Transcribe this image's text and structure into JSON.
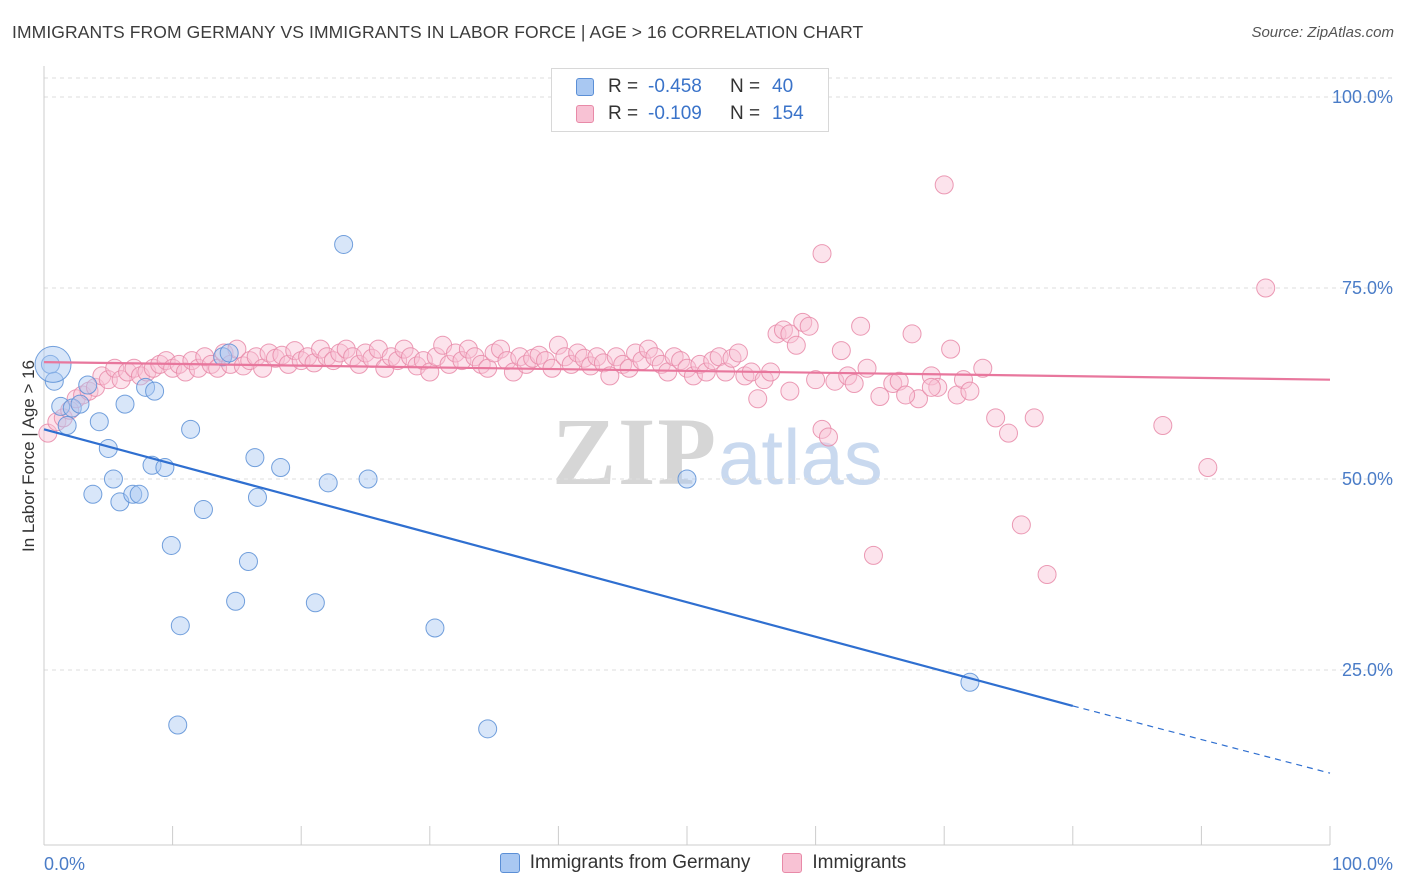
{
  "header": {
    "title": "IMMIGRANTS FROM GERMANY VS IMMIGRANTS IN LABOR FORCE | AGE > 16 CORRELATION CHART",
    "source": "Source: ZipAtlas.com"
  },
  "watermark": {
    "zip": "ZIP",
    "atlas": "atlas"
  },
  "legend": {
    "rows": [
      {
        "r_label": "R =",
        "r_value": "-0.458",
        "n_label": "N =",
        "n_value": "40",
        "color": "#a9c8f2",
        "border": "#5b8fd6"
      },
      {
        "r_label": "R =",
        "r_value": "-0.109",
        "n_label": "N =",
        "n_value": "154",
        "color": "#f8c2d4",
        "border": "#e88aa8"
      }
    ]
  },
  "bottom_legend": {
    "items": [
      {
        "label": "Immigrants from Germany",
        "color": "#a9c8f2",
        "border": "#5b8fd6"
      },
      {
        "label": "Immigrants",
        "color": "#f8c2d4",
        "border": "#e88aa8"
      }
    ]
  },
  "chart_data": {
    "type": "scatter",
    "title": "IMMIGRANTS FROM GERMANY VS IMMIGRANTS IN LABOR FORCE | AGE > 16 CORRELATION CHART",
    "xlabel": "",
    "ylabel": "In Labor Force | Age > 16",
    "xlim": [
      0,
      100
    ],
    "ylim": [
      0,
      105
    ],
    "x_tick_labels": [
      "0.0%",
      "100.0%"
    ],
    "y_ticks": [
      25,
      50,
      75,
      100
    ],
    "y_tick_labels": [
      "25.0%",
      "50.0%",
      "75.0%",
      "100.0%"
    ],
    "grid": "horizontal dashed",
    "legend_position": "top-center",
    "series": [
      {
        "name": "Immigrants from Germany",
        "color": "#5b8fd6",
        "fill": "#a9c8f2",
        "trend": {
          "x0": 0,
          "y0": 56.5,
          "x1": 80,
          "y1": 20.3,
          "dashed_to_x": 100,
          "dashed_to_y": 11.5,
          "color": "#2f6fd0"
        },
        "points": [
          [
            0.5,
            65.0
          ],
          [
            0.8,
            62.8
          ],
          [
            1.3,
            59.5
          ],
          [
            1.8,
            57.0
          ],
          [
            2.2,
            59.3
          ],
          [
            2.8,
            59.8
          ],
          [
            3.4,
            62.3
          ],
          [
            3.8,
            48.0
          ],
          [
            4.3,
            57.5
          ],
          [
            5.0,
            54.0
          ],
          [
            5.4,
            50.0
          ],
          [
            5.9,
            47.0
          ],
          [
            6.3,
            59.8
          ],
          [
            6.9,
            48.0
          ],
          [
            7.4,
            48.0
          ],
          [
            7.9,
            62.0
          ],
          [
            8.4,
            51.8
          ],
          [
            8.6,
            61.5
          ],
          [
            9.4,
            51.5
          ],
          [
            9.9,
            41.3
          ],
          [
            10.6,
            30.8
          ],
          [
            10.4,
            17.8
          ],
          [
            11.4,
            56.5
          ],
          [
            12.4,
            46.0
          ],
          [
            13.9,
            66.0
          ],
          [
            14.4,
            66.5
          ],
          [
            15.9,
            39.2
          ],
          [
            14.9,
            34.0
          ],
          [
            16.4,
            52.8
          ],
          [
            16.6,
            47.6
          ],
          [
            18.4,
            51.5
          ],
          [
            21.1,
            33.8
          ],
          [
            22.1,
            49.5
          ],
          [
            23.3,
            80.7
          ],
          [
            25.2,
            50.0
          ],
          [
            30.4,
            30.5
          ],
          [
            34.5,
            17.3
          ],
          [
            50.0,
            50.0
          ],
          [
            72.0,
            23.4
          ],
          [
            0.7,
            65.0
          ]
        ]
      },
      {
        "name": "Immigrants",
        "color": "#e88aa8",
        "fill": "#f8c2d4",
        "trend": {
          "x0": 0,
          "y0": 65.3,
          "x1": 100,
          "y1": 63.0,
          "color": "#e8779d"
        },
        "points": [
          [
            0.3,
            56.0
          ],
          [
            1.0,
            57.5
          ],
          [
            1.5,
            58.0
          ],
          [
            2.0,
            59.0
          ],
          [
            2.5,
            60.5
          ],
          [
            3.0,
            61.0
          ],
          [
            3.5,
            61.5
          ],
          [
            4.0,
            62.0
          ],
          [
            4.5,
            63.5
          ],
          [
            5.0,
            63.0
          ],
          [
            5.5,
            64.5
          ],
          [
            6.0,
            63.0
          ],
          [
            6.5,
            64.0
          ],
          [
            7.0,
            64.5
          ],
          [
            7.5,
            63.5
          ],
          [
            8.0,
            64.0
          ],
          [
            8.5,
            64.5
          ],
          [
            9.0,
            65.0
          ],
          [
            9.5,
            65.5
          ],
          [
            10.0,
            64.5
          ],
          [
            10.5,
            65.0
          ],
          [
            11.0,
            64.0
          ],
          [
            11.5,
            65.5
          ],
          [
            12.0,
            64.5
          ],
          [
            12.5,
            66.0
          ],
          [
            13.0,
            65.0
          ],
          [
            13.5,
            64.5
          ],
          [
            14.0,
            66.5
          ],
          [
            14.5,
            65.0
          ],
          [
            15.0,
            67.0
          ],
          [
            15.5,
            64.8
          ],
          [
            16.0,
            65.5
          ],
          [
            16.5,
            66.0
          ],
          [
            17.0,
            64.5
          ],
          [
            17.5,
            66.5
          ],
          [
            18.0,
            65.8
          ],
          [
            18.5,
            66.2
          ],
          [
            19.0,
            65.0
          ],
          [
            19.5,
            66.8
          ],
          [
            20.0,
            65.5
          ],
          [
            20.5,
            66.0
          ],
          [
            21.0,
            65.2
          ],
          [
            21.5,
            67.0
          ],
          [
            22.0,
            66.0
          ],
          [
            22.5,
            65.5
          ],
          [
            23.0,
            66.5
          ],
          [
            23.5,
            67.0
          ],
          [
            24.0,
            66.0
          ],
          [
            24.5,
            65.0
          ],
          [
            25.0,
            66.5
          ],
          [
            25.5,
            65.8
          ],
          [
            26.0,
            67.0
          ],
          [
            26.5,
            64.5
          ],
          [
            27.0,
            66.0
          ],
          [
            27.5,
            65.5
          ],
          [
            28.0,
            67.0
          ],
          [
            28.5,
            66.0
          ],
          [
            29.0,
            64.8
          ],
          [
            29.5,
            65.5
          ],
          [
            30.0,
            64.0
          ],
          [
            30.5,
            66.0
          ],
          [
            31.0,
            67.5
          ],
          [
            31.5,
            65.0
          ],
          [
            32.0,
            66.5
          ],
          [
            32.5,
            65.5
          ],
          [
            33.0,
            67.0
          ],
          [
            33.5,
            66.0
          ],
          [
            34.0,
            65.0
          ],
          [
            34.5,
            64.5
          ],
          [
            35.0,
            66.5
          ],
          [
            35.5,
            67.0
          ],
          [
            36.0,
            65.5
          ],
          [
            36.5,
            64.0
          ],
          [
            37.0,
            66.0
          ],
          [
            37.5,
            65.0
          ],
          [
            38.0,
            65.8
          ],
          [
            38.5,
            66.2
          ],
          [
            39.0,
            65.5
          ],
          [
            39.5,
            64.5
          ],
          [
            40.0,
            67.5
          ],
          [
            40.5,
            66.0
          ],
          [
            41.0,
            65.0
          ],
          [
            41.5,
            66.5
          ],
          [
            42.0,
            65.8
          ],
          [
            42.5,
            64.8
          ],
          [
            43.0,
            66.0
          ],
          [
            43.5,
            65.2
          ],
          [
            44.0,
            63.5
          ],
          [
            44.5,
            66.0
          ],
          [
            45.0,
            65.0
          ],
          [
            45.5,
            64.5
          ],
          [
            46.0,
            66.5
          ],
          [
            46.5,
            65.5
          ],
          [
            47.0,
            67.0
          ],
          [
            47.5,
            66.0
          ],
          [
            48.0,
            65.0
          ],
          [
            48.5,
            64.0
          ],
          [
            49.0,
            66.0
          ],
          [
            49.5,
            65.5
          ],
          [
            50.0,
            64.5
          ],
          [
            50.5,
            63.5
          ],
          [
            51.0,
            65.0
          ],
          [
            51.5,
            64.0
          ],
          [
            52.0,
            65.5
          ],
          [
            52.5,
            66.0
          ],
          [
            53.0,
            64.0
          ],
          [
            53.5,
            65.8
          ],
          [
            54.0,
            66.5
          ],
          [
            54.5,
            63.5
          ],
          [
            55.0,
            64.0
          ],
          [
            55.5,
            60.5
          ],
          [
            56.0,
            63.0
          ],
          [
            56.5,
            64.0
          ],
          [
            57.0,
            69.0
          ],
          [
            57.5,
            69.5
          ],
          [
            58.0,
            69.0
          ],
          [
            58.5,
            67.5
          ],
          [
            59.0,
            70.5
          ],
          [
            59.5,
            70.0
          ],
          [
            60.0,
            63.0
          ],
          [
            60.5,
            56.5
          ],
          [
            61.0,
            55.5
          ],
          [
            61.5,
            62.8
          ],
          [
            62.0,
            66.8
          ],
          [
            62.5,
            63.5
          ],
          [
            63.0,
            62.5
          ],
          [
            63.5,
            70.0
          ],
          [
            64.0,
            64.5
          ],
          [
            64.5,
            40.0
          ],
          [
            65.0,
            60.8
          ],
          [
            66.0,
            62.5
          ],
          [
            66.5,
            62.8
          ],
          [
            67.5,
            69.0
          ],
          [
            68.0,
            60.5
          ],
          [
            69.0,
            63.5
          ],
          [
            69.5,
            62.0
          ],
          [
            70.0,
            88.5
          ],
          [
            70.5,
            67.0
          ],
          [
            71.0,
            61.0
          ],
          [
            71.5,
            63.0
          ],
          [
            72.0,
            61.5
          ],
          [
            73.0,
            64.5
          ],
          [
            74.0,
            58.0
          ],
          [
            75.0,
            56.0
          ],
          [
            76.0,
            44.0
          ],
          [
            77.0,
            58.0
          ],
          [
            78.0,
            37.5
          ],
          [
            60.5,
            79.5
          ],
          [
            87.0,
            57.0
          ],
          [
            90.5,
            51.5
          ],
          [
            95.0,
            75.0
          ],
          [
            58.0,
            61.5
          ],
          [
            67.0,
            61.0
          ],
          [
            69.0,
            62.0
          ]
        ]
      }
    ]
  }
}
